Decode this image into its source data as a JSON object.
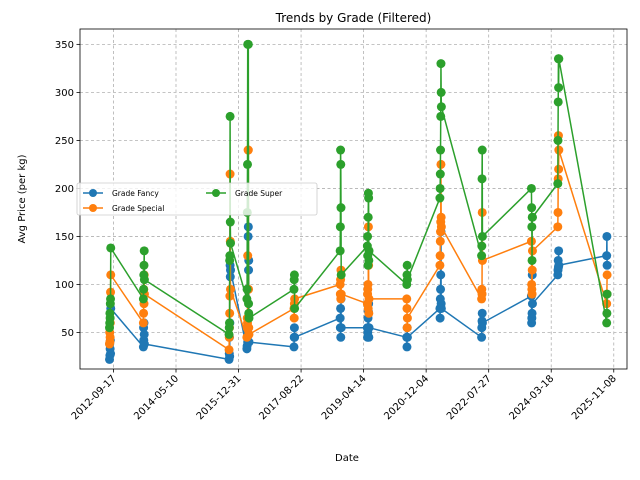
{
  "chart_data": {
    "type": "line",
    "title": "Trends by Grade (Filtered)",
    "xlabel": "Date",
    "ylabel": "Avg Price (per kg)",
    "xlim": [
      "2011-11-01",
      "2026-03-15"
    ],
    "ylim": [
      12,
      366
    ],
    "x_ticks": [
      "2012-09-17",
      "2014-05-10",
      "2015-12-31",
      "2017-08-22",
      "2019-04-14",
      "2020-12-04",
      "2022-07-27",
      "2024-03-18",
      "2025-11-08"
    ],
    "y_ticks": [
      50,
      100,
      150,
      200,
      250,
      300,
      350
    ],
    "grid": true,
    "legend": {
      "position": "upper-left",
      "columns": 2
    },
    "colors": {
      "Grade Fancy": "#1f77b4",
      "Grade Special": "#ff7f0e",
      "Grade Super": "#2ca02c"
    },
    "series": [
      {
        "name": "Grade Fancy",
        "points": [
          [
            "2012-08-10",
            22
          ],
          [
            "2012-08-12",
            38
          ],
          [
            "2012-08-14",
            26
          ],
          [
            "2012-08-16",
            33
          ],
          [
            "2012-08-18",
            42
          ],
          [
            "2012-08-20",
            28
          ],
          [
            "2012-08-22",
            75
          ],
          [
            "2013-07-01",
            35
          ],
          [
            "2013-07-03",
            55
          ],
          [
            "2013-07-05",
            42
          ],
          [
            "2013-07-07",
            60
          ],
          [
            "2013-07-09",
            48
          ],
          [
            "2013-07-11",
            38
          ],
          [
            "2015-10-01",
            22
          ],
          [
            "2015-10-03",
            28
          ],
          [
            "2015-10-05",
            45
          ],
          [
            "2015-10-07",
            25
          ],
          [
            "2015-10-09",
            60
          ],
          [
            "2015-10-11",
            120
          ],
          [
            "2015-10-13",
            108
          ],
          [
            "2015-10-15",
            115
          ],
          [
            "2016-03-20",
            33
          ],
          [
            "2016-03-22",
            36
          ],
          [
            "2016-03-24",
            45
          ],
          [
            "2016-03-26",
            52
          ],
          [
            "2016-03-28",
            40
          ],
          [
            "2016-04-01",
            150
          ],
          [
            "2016-04-03",
            160
          ],
          [
            "2016-04-05",
            115
          ],
          [
            "2016-04-07",
            125
          ],
          [
            "2016-04-09",
            40
          ],
          [
            "2017-06-15",
            35
          ],
          [
            "2017-06-17",
            45
          ],
          [
            "2017-06-19",
            55
          ],
          [
            "2017-06-21",
            45
          ],
          [
            "2018-09-01",
            65
          ],
          [
            "2018-09-03",
            55
          ],
          [
            "2018-09-05",
            75
          ],
          [
            "2018-09-07",
            45
          ],
          [
            "2018-09-09",
            85
          ],
          [
            "2018-09-11",
            55
          ],
          [
            "2019-05-20",
            55
          ],
          [
            "2019-05-22",
            45
          ],
          [
            "2019-05-24",
            50
          ],
          [
            "2019-05-26",
            65
          ],
          [
            "2019-05-28",
            55
          ],
          [
            "2019-05-30",
            72
          ],
          [
            "2019-06-01",
            80
          ],
          [
            "2019-06-03",
            45
          ],
          [
            "2019-06-05",
            55
          ],
          [
            "2020-06-01",
            45
          ],
          [
            "2020-06-03",
            35
          ],
          [
            "2020-06-05",
            55
          ],
          [
            "2020-06-07",
            45
          ],
          [
            "2021-04-15",
            75
          ],
          [
            "2021-04-17",
            65
          ],
          [
            "2021-04-19",
            85
          ],
          [
            "2021-04-21",
            95
          ],
          [
            "2021-04-23",
            110
          ],
          [
            "2021-04-25",
            155
          ],
          [
            "2021-04-27",
            80
          ],
          [
            "2021-04-29",
            75
          ],
          [
            "2022-05-20",
            45
          ],
          [
            "2022-05-22",
            55
          ],
          [
            "2022-05-24",
            62
          ],
          [
            "2022-05-26",
            70
          ],
          [
            "2022-05-28",
            60
          ],
          [
            "2023-09-10",
            88
          ],
          [
            "2023-09-12",
            60
          ],
          [
            "2023-09-14",
            65
          ],
          [
            "2023-09-16",
            70
          ],
          [
            "2023-09-18",
            110
          ],
          [
            "2023-09-20",
            80
          ],
          [
            "2024-05-20",
            110
          ],
          [
            "2024-05-22",
            115
          ],
          [
            "2024-05-24",
            125
          ],
          [
            "2024-05-26",
            118
          ],
          [
            "2024-05-28",
            135
          ],
          [
            "2024-05-30",
            120
          ],
          [
            "2025-09-01",
            130
          ],
          [
            "2025-09-03",
            150
          ],
          [
            "2025-09-05",
            120
          ]
        ]
      },
      {
        "name": "Grade Special",
        "points": [
          [
            "2012-08-10",
            38
          ],
          [
            "2012-08-12",
            50
          ],
          [
            "2012-08-14",
            40
          ],
          [
            "2012-08-16",
            45
          ],
          [
            "2012-08-18",
            60
          ],
          [
            "2012-08-20",
            92
          ],
          [
            "2012-08-22",
            110
          ],
          [
            "2013-07-01",
            60
          ],
          [
            "2013-07-03",
            70
          ],
          [
            "2013-07-05",
            95
          ],
          [
            "2013-07-07",
            80
          ],
          [
            "2013-07-09",
            110
          ],
          [
            "2013-07-11",
            90
          ],
          [
            "2015-10-01",
            32
          ],
          [
            "2015-10-03",
            45
          ],
          [
            "2015-10-05",
            55
          ],
          [
            "2015-10-07",
            70
          ],
          [
            "2015-10-09",
            88
          ],
          [
            "2015-10-11",
            215
          ],
          [
            "2015-10-13",
            145
          ],
          [
            "2015-10-15",
            95
          ],
          [
            "2016-03-20",
            45
          ],
          [
            "2016-03-22",
            55
          ],
          [
            "2016-03-24",
            65
          ],
          [
            "2016-03-26",
            60
          ],
          [
            "2016-03-28",
            130
          ],
          [
            "2016-04-01",
            240
          ],
          [
            "2016-04-03",
            240
          ],
          [
            "2016-04-05",
            95
          ],
          [
            "2016-04-07",
            55
          ],
          [
            "2016-04-09",
            48
          ],
          [
            "2017-06-15",
            75
          ],
          [
            "2017-06-17",
            65
          ],
          [
            "2017-06-19",
            80
          ],
          [
            "2017-06-21",
            85
          ],
          [
            "2018-09-01",
            100
          ],
          [
            "2018-09-03",
            90
          ],
          [
            "2018-09-05",
            105
          ],
          [
            "2018-09-07",
            85
          ],
          [
            "2018-09-09",
            115
          ],
          [
            "2018-09-11",
            90
          ],
          [
            "2019-05-20",
            80
          ],
          [
            "2019-05-22",
            90
          ],
          [
            "2019-05-24",
            95
          ],
          [
            "2019-05-26",
            100
          ],
          [
            "2019-05-28",
            75
          ],
          [
            "2019-05-30",
            160
          ],
          [
            "2019-06-01",
            120
          ],
          [
            "2019-06-03",
            70
          ],
          [
            "2019-06-05",
            85
          ],
          [
            "2020-06-01",
            85
          ],
          [
            "2020-06-03",
            75
          ],
          [
            "2020-06-05",
            55
          ],
          [
            "2020-06-07",
            65
          ],
          [
            "2021-04-15",
            120
          ],
          [
            "2021-04-17",
            130
          ],
          [
            "2021-04-19",
            145
          ],
          [
            "2021-04-21",
            155
          ],
          [
            "2021-04-23",
            165
          ],
          [
            "2021-04-25",
            225
          ],
          [
            "2021-04-27",
            170
          ],
          [
            "2021-04-29",
            160
          ],
          [
            "2022-05-20",
            85
          ],
          [
            "2022-05-22",
            95
          ],
          [
            "2022-05-24",
            90
          ],
          [
            "2022-05-26",
            175
          ],
          [
            "2022-05-28",
            125
          ],
          [
            "2023-09-10",
            145
          ],
          [
            "2023-09-12",
            100
          ],
          [
            "2023-09-14",
            95
          ],
          [
            "2023-09-16",
            90
          ],
          [
            "2023-09-18",
            115
          ],
          [
            "2023-09-20",
            135
          ],
          [
            "2024-05-20",
            160
          ],
          [
            "2024-05-22",
            175
          ],
          [
            "2024-05-24",
            210
          ],
          [
            "2024-05-26",
            255
          ],
          [
            "2024-05-28",
            220
          ],
          [
            "2024-05-30",
            240
          ],
          [
            "2025-09-01",
            80
          ],
          [
            "2025-09-03",
            90
          ],
          [
            "2025-09-05",
            110
          ]
        ]
      },
      {
        "name": "Grade Super",
        "points": [
          [
            "2012-08-10",
            55
          ],
          [
            "2012-08-12",
            60
          ],
          [
            "2012-08-14",
            70
          ],
          [
            "2012-08-16",
            65
          ],
          [
            "2012-08-18",
            80
          ],
          [
            "2012-08-20",
            85
          ],
          [
            "2012-08-22",
            138
          ],
          [
            "2013-07-01",
            85
          ],
          [
            "2013-07-03",
            95
          ],
          [
            "2013-07-05",
            110
          ],
          [
            "2013-07-07",
            120
          ],
          [
            "2013-07-09",
            135
          ],
          [
            "2013-07-11",
            105
          ],
          [
            "2015-10-01",
            48
          ],
          [
            "2015-10-03",
            55
          ],
          [
            "2015-10-05",
            60
          ],
          [
            "2015-10-07",
            125
          ],
          [
            "2015-10-09",
            130
          ],
          [
            "2015-10-11",
            275
          ],
          [
            "2015-10-13",
            165
          ],
          [
            "2015-10-15",
            143
          ],
          [
            "2016-03-20",
            85
          ],
          [
            "2016-03-22",
            95
          ],
          [
            "2016-03-24",
            175
          ],
          [
            "2016-03-26",
            225
          ],
          [
            "2016-03-28",
            350
          ],
          [
            "2016-04-01",
            350
          ],
          [
            "2016-04-03",
            350
          ],
          [
            "2016-04-05",
            80
          ],
          [
            "2016-04-07",
            70
          ],
          [
            "2016-04-09",
            65
          ],
          [
            "2017-06-15",
            95
          ],
          [
            "2017-06-17",
            105
          ],
          [
            "2017-06-19",
            110
          ],
          [
            "2017-06-21",
            75
          ],
          [
            "2018-09-01",
            135
          ],
          [
            "2018-09-03",
            160
          ],
          [
            "2018-09-05",
            240
          ],
          [
            "2018-09-07",
            225
          ],
          [
            "2018-09-09",
            180
          ],
          [
            "2018-09-11",
            110
          ],
          [
            "2019-05-20",
            140
          ],
          [
            "2019-05-22",
            150
          ],
          [
            "2019-05-24",
            130
          ],
          [
            "2019-05-26",
            120
          ],
          [
            "2019-05-28",
            170
          ],
          [
            "2019-05-30",
            195
          ],
          [
            "2019-06-01",
            190
          ],
          [
            "2019-06-03",
            125
          ],
          [
            "2019-06-05",
            135
          ],
          [
            "2020-06-01",
            100
          ],
          [
            "2020-06-03",
            110
          ],
          [
            "2020-06-05",
            120
          ],
          [
            "2020-06-07",
            105
          ],
          [
            "2021-04-15",
            190
          ],
          [
            "2021-04-17",
            200
          ],
          [
            "2021-04-19",
            215
          ],
          [
            "2021-04-21",
            240
          ],
          [
            "2021-04-23",
            275
          ],
          [
            "2021-04-25",
            330
          ],
          [
            "2021-04-27",
            300
          ],
          [
            "2021-04-29",
            285
          ],
          [
            "2022-05-20",
            130
          ],
          [
            "2022-05-22",
            140
          ],
          [
            "2022-05-24",
            210
          ],
          [
            "2022-05-26",
            240
          ],
          [
            "2022-05-28",
            150
          ],
          [
            "2023-09-10",
            200
          ],
          [
            "2023-09-12",
            180
          ],
          [
            "2023-09-14",
            160
          ],
          [
            "2023-09-16",
            125
          ],
          [
            "2023-09-18",
            170
          ],
          [
            "2023-09-20",
            170
          ],
          [
            "2024-05-20",
            205
          ],
          [
            "2024-05-22",
            250
          ],
          [
            "2024-05-24",
            290
          ],
          [
            "2024-05-26",
            335
          ],
          [
            "2024-05-28",
            305
          ],
          [
            "2024-05-30",
            335
          ],
          [
            "2025-09-01",
            60
          ],
          [
            "2025-09-03",
            70
          ],
          [
            "2025-09-05",
            90
          ]
        ]
      }
    ]
  }
}
